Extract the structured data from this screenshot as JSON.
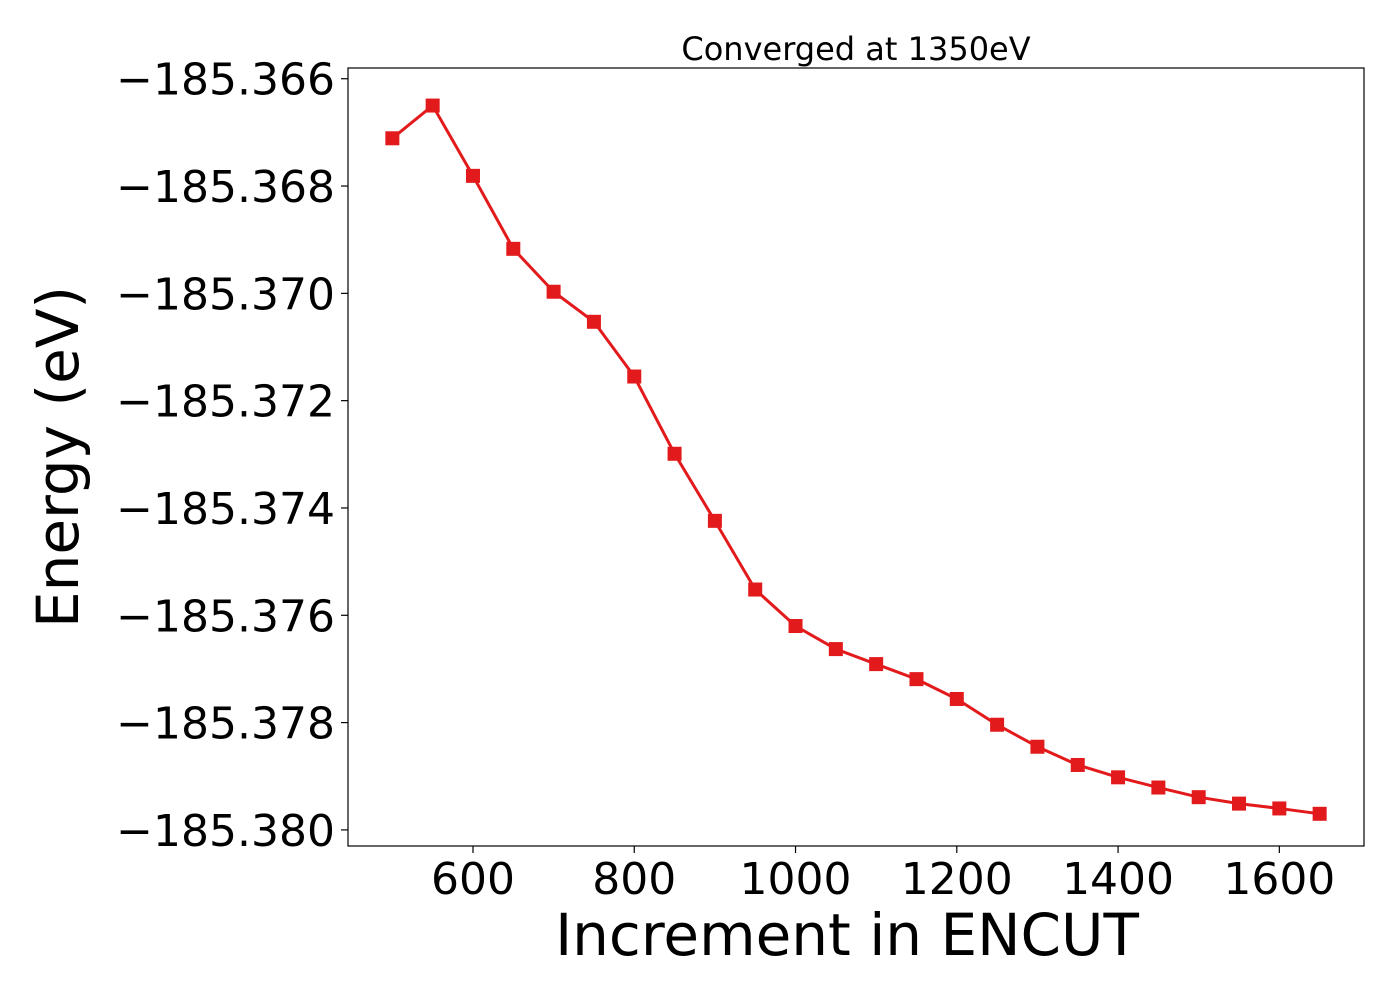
{
  "chart_data": {
    "type": "line",
    "title": "Converged at 1350eV",
    "xlabel": "Increment in ENCUT",
    "ylabel": "Energy (eV)",
    "xlim": [
      445,
      1705
    ],
    "ylim": [
      -185.3803,
      -185.3658
    ],
    "x_ticks": [
      600,
      800,
      1000,
      1200,
      1400,
      1600
    ],
    "x_tick_labels": [
      "600",
      "800",
      "1000",
      "1200",
      "1400",
      "1600"
    ],
    "y_ticks": [
      -185.366,
      -185.368,
      -185.37,
      -185.372,
      -185.374,
      -185.376,
      -185.378,
      -185.38
    ],
    "y_tick_labels": [
      "−185.366",
      "−185.368",
      "−185.370",
      "−185.372",
      "−185.374",
      "−185.376",
      "−185.378",
      "−185.380"
    ],
    "grid": false,
    "marker": "square",
    "series": [
      {
        "color": "#e31a1c",
        "x": [
          500,
          550,
          600,
          650,
          700,
          750,
          800,
          850,
          900,
          950,
          1000,
          1050,
          1100,
          1150,
          1200,
          1250,
          1300,
          1350,
          1400,
          1450,
          1500,
          1550,
          1600,
          1650
        ],
        "y": [
          -185.36711,
          -185.3665,
          -185.36781,
          -185.36917,
          -185.36997,
          -185.37053,
          -185.37155,
          -185.37299,
          -185.37424,
          -185.37552,
          -185.3762,
          -185.37663,
          -185.37691,
          -185.37719,
          -185.37756,
          -185.37804,
          -185.37845,
          -185.37879,
          -185.37902,
          -185.37921,
          -185.37939,
          -185.37951,
          -185.3796,
          -185.3797
        ]
      }
    ]
  }
}
